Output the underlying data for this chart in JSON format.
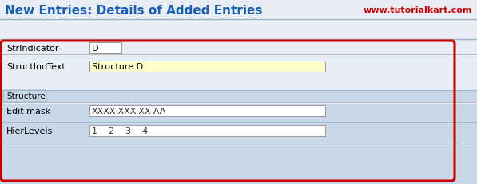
{
  "title": "New Entries: Details of Added Entries",
  "watermark": "www.tutorialkart.com",
  "title_color": "#1a5fb4",
  "watermark_color": "#cc0000",
  "bg_white": "#ffffff",
  "bg_title": "#ffffff",
  "bg_toolbar": "#c8d8e8",
  "bg_form_upper": "#e8eef4",
  "bg_form_lower": "#c8d8e8",
  "field_str_indicator_label": "StrIndicator",
  "field_str_indicator_value": "D",
  "field_struct_ind_text_label": "StructIndText",
  "field_struct_ind_text_value": "Structure D",
  "section_label": "Structure",
  "edit_mask_label": "Edit mask",
  "edit_mask_value": "XXXX-XXX-XX-AA",
  "hier_levels_label": "HierLevels",
  "hier_levels_values": "1    2    3    4",
  "red_border_color": "#cc0000",
  "input_bg_white": "#ffffff",
  "input_bg_yellow": "#ffffcc",
  "text_color": "#000000",
  "text_dark": "#333333",
  "separator_color": "#a0b4c8",
  "tab_bg": "#c8d8e8"
}
